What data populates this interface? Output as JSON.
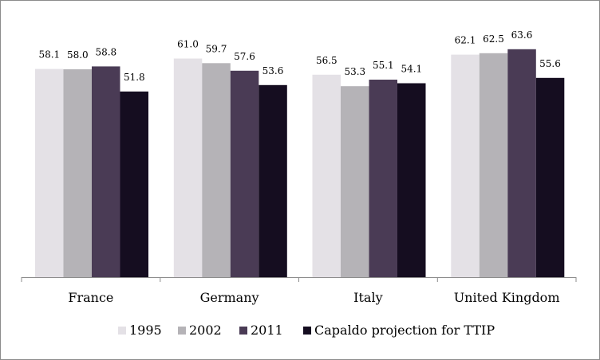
{
  "chart_data": {
    "type": "bar",
    "title": "",
    "xlabel": "",
    "ylabel": "",
    "categories": [
      "France",
      "Germany",
      "Italy",
      "United Kingdom"
    ],
    "series": [
      {
        "name": "1995",
        "values": [
          58.1,
          61.0,
          56.5,
          62.1
        ],
        "color": "#e4e1e6"
      },
      {
        "name": "2002",
        "values": [
          58.0,
          59.7,
          53.3,
          62.5
        ],
        "color": "#b5b3b7"
      },
      {
        "name": "2011",
        "values": [
          58.8,
          57.6,
          55.1,
          63.6
        ],
        "color": "#4a3b55"
      },
      {
        "name": "Capaldo projection for TTIP",
        "values": [
          51.8,
          53.6,
          54.1,
          55.6
        ],
        "color": "#150d20"
      }
    ],
    "value_format_decimals": 1,
    "ylim": [
      0,
      66
    ],
    "y_axis_visible": false,
    "grid": false,
    "legend": {
      "position": "bottom"
    }
  }
}
